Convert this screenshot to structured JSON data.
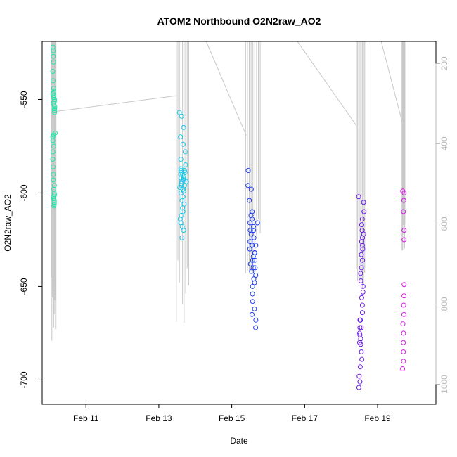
{
  "chart_data": {
    "type": "scatter",
    "title": "ATOM2 Northbound O2N2raw_AO2",
    "xlabel": "Date",
    "ylabel": "O2N2raw_AO2",
    "xlim": [
      9.8,
      20.6
    ],
    "ylim": [
      -713,
      -519
    ],
    "yticks": [
      -550,
      -600,
      -650,
      -700
    ],
    "xticks": [
      {
        "day": 11,
        "label": "Feb 11"
      },
      {
        "day": 13,
        "label": "Feb 13"
      },
      {
        "day": 15,
        "label": "Feb 15"
      },
      {
        "day": 17,
        "label": "Feb 17"
      },
      {
        "day": 19,
        "label": "Feb 19"
      }
    ],
    "y2lim": [
      1050,
      145
    ],
    "y2ticks": [
      200,
      400,
      600,
      800,
      1000
    ],
    "y2_color": "#b8b8b8",
    "trace_color": "#c8c8c8",
    "groups": [
      {
        "name": "group-feb10",
        "color": "#1be8a8",
        "x_range": [
          10.05,
          10.18
        ],
        "y_values": [
          -522,
          -524,
          -527,
          -530,
          -535,
          -540,
          -544,
          -546,
          -547,
          -548,
          -549,
          -550,
          -551,
          -552,
          -553,
          -554,
          -555,
          -556,
          -557,
          -568,
          -569,
          -570,
          -572,
          -575,
          -578,
          -582,
          -586,
          -590,
          -593,
          -596,
          -598,
          -600,
          -601,
          -602,
          -603,
          -604,
          -605,
          -606,
          -607
        ],
        "depth_range": [
          220,
          905
        ],
        "depth_traces": [
          [
            10.1,
            320
          ],
          [
            10.15,
            320
          ]
        ]
      },
      {
        "name": "group-feb13",
        "color": "#1bc8e8",
        "x_range": [
          13.48,
          13.82
        ],
        "y_values": [
          -557,
          -559,
          -565,
          -570,
          -574,
          -578,
          -582,
          -585,
          -587,
          -588,
          -589,
          -590,
          -591,
          -592,
          -593,
          -594,
          -595,
          -596,
          -597,
          -598,
          -599,
          -600,
          -602,
          -604,
          -606,
          -608,
          -610,
          -612,
          -614,
          -616,
          -618,
          -620,
          -624,
          -588,
          -590,
          -592,
          -594,
          -596
        ],
        "depth_range": [
          145,
          860
        ],
        "depth_traces": [
          [
            10.15,
            320
          ],
          [
            13.5,
            280
          ]
        ]
      },
      {
        "name": "group-feb15",
        "color": "#1f3cf0",
        "x_range": [
          15.38,
          15.78
        ],
        "y_values": [
          -588,
          -596,
          -598,
          -604,
          -610,
          -612,
          -614,
          -616,
          -618,
          -620,
          -622,
          -624,
          -626,
          -628,
          -630,
          -632,
          -634,
          -636,
          -638,
          -640,
          -642,
          -644,
          -646,
          -648,
          -650,
          -654,
          -658,
          -662,
          -665,
          -668,
          -672,
          -628,
          -632,
          -636,
          -640,
          -616,
          -620
        ],
        "depth_range": [
          145,
          735
        ],
        "depth_traces": [
          [
            14.3,
            145
          ],
          [
            15.4,
            380
          ]
        ]
      },
      {
        "name": "group-feb18",
        "color": "#6a1be8",
        "x_range": [
          18.42,
          18.68
        ],
        "y_values": [
          -602,
          -605,
          -610,
          -614,
          -617,
          -620,
          -622,
          -624,
          -626,
          -628,
          -630,
          -633,
          -636,
          -640,
          -643,
          -647,
          -650,
          -653,
          -656,
          -660,
          -664,
          -668,
          -672,
          -675,
          -678,
          -681,
          -685,
          -689,
          -693,
          -698,
          -701,
          -704,
          -668,
          -672,
          -676,
          -680
        ],
        "depth_range": [
          145,
          760
        ],
        "depth_traces": [
          [
            16.8,
            145
          ],
          [
            18.42,
            355
          ]
        ]
      },
      {
        "name": "group-feb19",
        "color": "#d81be8",
        "x_range": [
          19.67,
          19.75
        ],
        "y_values": [
          -599,
          -600,
          -604,
          -610,
          -620,
          -625,
          -649,
          -655,
          -660,
          -665,
          -670,
          -675,
          -680,
          -685,
          -690,
          -694
        ],
        "depth_range": [
          145,
          700
        ],
        "depth_traces": [
          [
            19.1,
            145
          ],
          [
            19.7,
            355
          ]
        ]
      }
    ]
  }
}
